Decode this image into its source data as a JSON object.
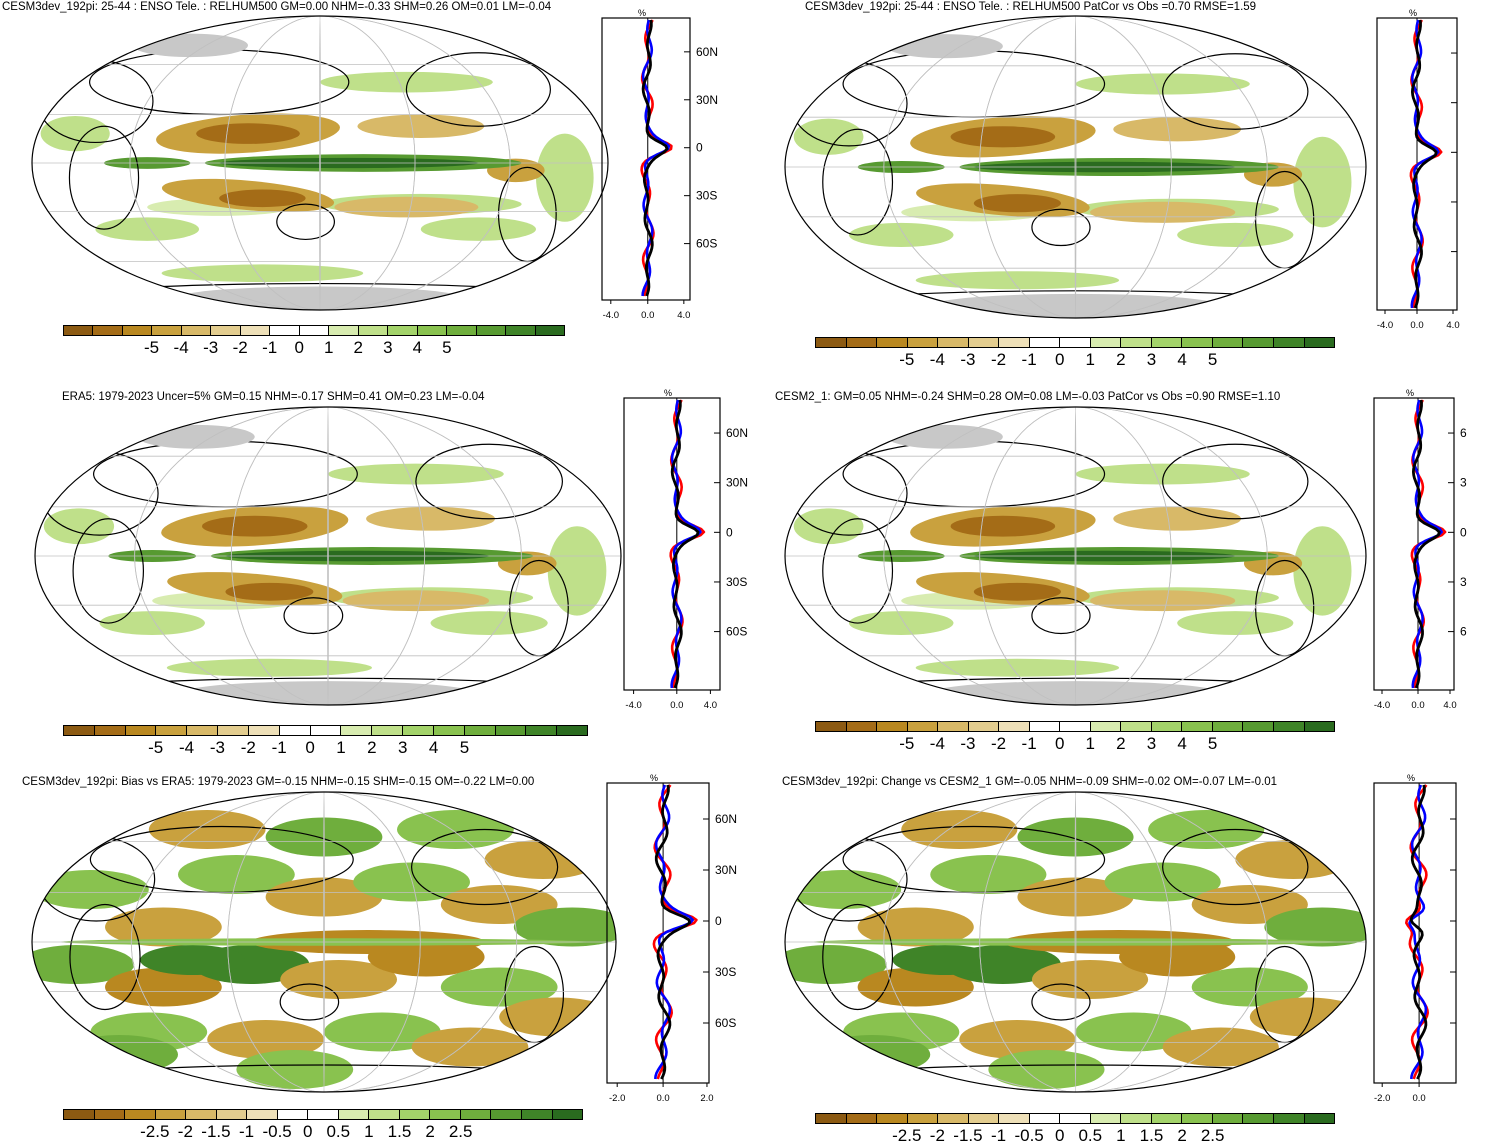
{
  "colors": {
    "scale": [
      "#8c5a12",
      "#a46c17",
      "#b98820",
      "#c9a13e",
      "#d8b968",
      "#e3cd8f",
      "#eee0b8",
      "#ffffff",
      "#ffffff",
      "#d8ecb0",
      "#bfe08a",
      "#a3d36a",
      "#89c24f",
      "#6fae3d",
      "#579a31",
      "#3f8428",
      "#2a6b1f"
    ],
    "land_missing": "#c8c8c8",
    "model_line": "#000000",
    "obs_line": "#0000ff",
    "bias_line": "#ff0000"
  },
  "panels": [
    {
      "id": "p1",
      "title": "CESM3dev_192pi: 25-44 : ENSO Tele. : RELHUM500 GM=0.00 NHM=-0.33 SHM=0.26 OM=0.01 LM=-0.04",
      "colorbar_labels": [
        "-5",
        "-4",
        "-3",
        "-2",
        "-1",
        "0",
        "1",
        "2",
        "3",
        "4",
        "5"
      ],
      "profile_unit": "%",
      "profile_lat_labels": [
        "60N",
        "30N",
        "0",
        "30S",
        "60S"
      ],
      "profile_x_labels": [
        "-4.0",
        "0.0",
        "4.0"
      ]
    },
    {
      "id": "p2",
      "title": "CESM3dev_192pi: 25-44 : ENSO Tele. : RELHUM500 PatCor vs Obs =0.70 RMSE=1.59",
      "colorbar_labels": [
        "-5",
        "-4",
        "-3",
        "-2",
        "-1",
        "0",
        "1",
        "2",
        "3",
        "4",
        "5"
      ],
      "profile_unit": "%",
      "profile_lat_labels": [
        "",
        "",
        "",
        "",
        ""
      ],
      "profile_x_labels": [
        "-4.0",
        "0.0",
        "4.0"
      ]
    },
    {
      "id": "p3",
      "title": "ERA5: 1979-2023 Uncer=5% GM=0.15 NHM=-0.17 SHM=0.41 OM=0.23 LM=-0.04",
      "colorbar_labels": [
        "-5",
        "-4",
        "-3",
        "-2",
        "-1",
        "0",
        "1",
        "2",
        "3",
        "4",
        "5"
      ],
      "profile_unit": "%",
      "profile_lat_labels": [
        "60N",
        "30N",
        "0",
        "30S",
        "60S"
      ],
      "profile_x_labels": [
        "-4.0",
        "0.0",
        "4.0"
      ]
    },
    {
      "id": "p4",
      "title": "CESM2_1: GM=0.05 NHM=-0.24 SHM=0.28 OM=0.08 LM=-0.03 PatCor vs Obs =0.90 RMSE=1.10",
      "colorbar_labels": [
        "-5",
        "-4",
        "-3",
        "-2",
        "-1",
        "0",
        "1",
        "2",
        "3",
        "4",
        "5"
      ],
      "profile_unit": "%",
      "profile_lat_labels": [
        "6",
        "3",
        "0",
        "3",
        "6"
      ],
      "profile_x_labels": [
        "-4.0",
        "0.0",
        "4.0"
      ]
    },
    {
      "id": "p5",
      "title": "CESM3dev_192pi: Bias vs ERA5: 1979-2023 GM=-0.15 NHM=-0.15 SHM=-0.15 OM=-0.22 LM=0.00",
      "colorbar_labels": [
        "-2.5",
        "-2",
        "-1.5",
        "-1",
        "-0.5",
        "0",
        "0.5",
        "1",
        "1.5",
        "2",
        "2.5"
      ],
      "profile_unit": "%",
      "profile_lat_labels": [
        "60N",
        "30N",
        "0",
        "30S",
        "60S"
      ],
      "profile_x_labels": [
        "-2.0",
        "0.0",
        "2.0"
      ]
    },
    {
      "id": "p6",
      "title": "CESM3dev_192pi: Change vs CESM2_1 GM=-0.05 NHM=-0.09 SHM=-0.02 OM=-0.07 LM=-0.01",
      "colorbar_labels": [
        "-2.5",
        "-2",
        "-1.5",
        "-1",
        "-0.5",
        "0",
        "0.5",
        "1",
        "1.5",
        "2",
        "2.5"
      ],
      "profile_unit": "%",
      "profile_lat_labels": [
        "",
        "",
        "",
        "",
        ""
      ],
      "profile_x_labels": [
        "-2.0",
        "0.0"
      ]
    }
  ]
}
